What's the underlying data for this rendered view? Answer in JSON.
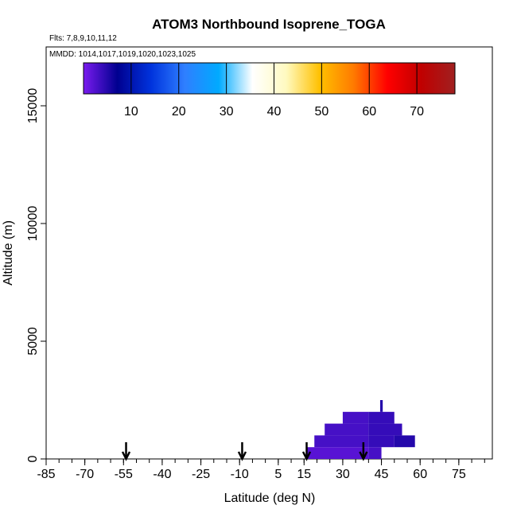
{
  "chart_data": {
    "type": "heatmap",
    "title": "ATOM3 Northbound Isoprene_TOGA",
    "subtitle_flights": "Flts: 7,8,9,10,11,12",
    "subtitle_dates": "MMDD: 1014,1017,1019,1020,1023,1025",
    "xlabel": "Latitude (deg N)",
    "ylabel": "Altitude (m)",
    "xlim": [
      -85,
      88
    ],
    "ylim": [
      0,
      17500
    ],
    "x_ticks": [
      -85,
      -70,
      -55,
      -40,
      -25,
      -10,
      5,
      15,
      30,
      45,
      60,
      75
    ],
    "y_ticks": [
      0,
      5000,
      10000,
      15000
    ],
    "colorbar": {
      "range": [
        0,
        78
      ],
      "ticks": [
        10,
        20,
        30,
        40,
        50,
        60,
        70
      ],
      "colors": [
        "#7a1bef",
        "#00008f",
        "#0033dd",
        "#2f7fff",
        "#00aaff",
        "#ffffff",
        "#fffac0",
        "#ffc000",
        "#ff7a00",
        "#ff0000",
        "#c00000",
        "#a02020"
      ]
    },
    "cells": [
      {
        "lat": [
          16,
          40
        ],
        "alt": [
          0,
          500
        ],
        "value": 2
      },
      {
        "lat": [
          40,
          45
        ],
        "alt": [
          0,
          500
        ],
        "value": 3
      },
      {
        "lat": [
          19,
          40
        ],
        "alt": [
          500,
          1000
        ],
        "value": 3
      },
      {
        "lat": [
          40,
          50
        ],
        "alt": [
          500,
          1000
        ],
        "value": 4
      },
      {
        "lat": [
          50,
          58
        ],
        "alt": [
          500,
          1000
        ],
        "value": 5
      },
      {
        "lat": [
          23,
          40
        ],
        "alt": [
          1000,
          1500
        ],
        "value": 3
      },
      {
        "lat": [
          40,
          53
        ],
        "alt": [
          1000,
          1500
        ],
        "value": 4
      },
      {
        "lat": [
          30,
          40
        ],
        "alt": [
          1500,
          2000
        ],
        "value": 3
      },
      {
        "lat": [
          40,
          50
        ],
        "alt": [
          1500,
          2000
        ],
        "value": 4
      },
      {
        "lat": [
          44.5,
          45.5
        ],
        "alt": [
          2000,
          2500
        ],
        "value": 5
      }
    ],
    "arrows_lat": [
      -54,
      -9,
      16,
      38
    ]
  }
}
